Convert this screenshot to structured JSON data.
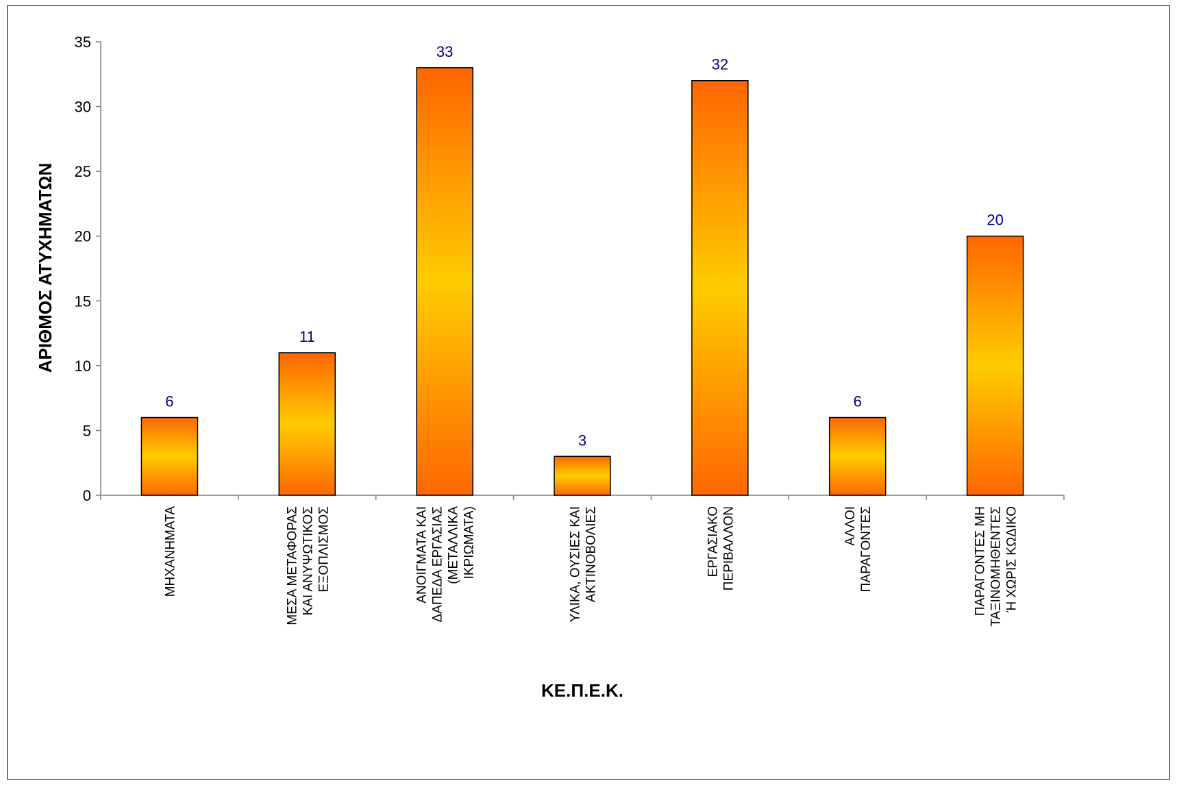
{
  "chart_data": {
    "type": "bar",
    "title": "",
    "xlabel": "ΚΕ.Π.Ε.Κ.",
    "ylabel": "ΑΡΙΘΜΟΣ ΑΤΥΧΗΜΑΤΩΝ",
    "ylim": [
      0,
      35
    ],
    "yticks": [
      0,
      5,
      10,
      15,
      20,
      25,
      30,
      35
    ],
    "grid": false,
    "legend": "none",
    "categories": [
      [
        "ΜΗΧΑΝΗΜΑΤΑ"
      ],
      [
        "ΜΕΣΑ ΜΕΤΑΦΟΡΑΣ",
        "ΚΑΙ ΑΝΥΨΩΤΙΚΟΣ",
        "ΕΞΟΠΛΙΣΜΟΣ"
      ],
      [
        "ΑΝΟΙΓΜΑΤΑ ΚΑΙ",
        "ΔΑΠΕΔΑ ΕΡΓΑΣΙΑΣ",
        "(ΜΕΤΑΛΛΙΚΑ",
        "ΙΚΡΙΩΜΑΤΑ)"
      ],
      [
        "ΥΛΙΚΑ, ΟΥΣΙΕΣ ΚΑΙ",
        "ΑΚΤΙΝΟΒΟΛΙΕΣ"
      ],
      [
        "ΕΡΓΑΣΙΑΚΟ",
        "ΠΕΡΙΒΑΛΛΟΝ"
      ],
      [
        "ΑΛΛΟΙ",
        "ΠΑΡΑΓΟΝΤΕΣ"
      ],
      [
        "ΠΑΡΑΓΟΝΤΕΣ ΜΗ",
        "ΤΑΞΙΝΟΜΗΘΕΝΤΕΣ",
        "Ή ΧΩΡΙΣ ΚΩΔΙΚΟ"
      ]
    ],
    "values": [
      6,
      11,
      33,
      3,
      32,
      6,
      20
    ],
    "colors": {
      "bar_edge": "#ff6600",
      "bar_center": "#ffcc00",
      "bar_outline": "#000000",
      "data_label": "#000080",
      "axis": "#808080"
    }
  }
}
